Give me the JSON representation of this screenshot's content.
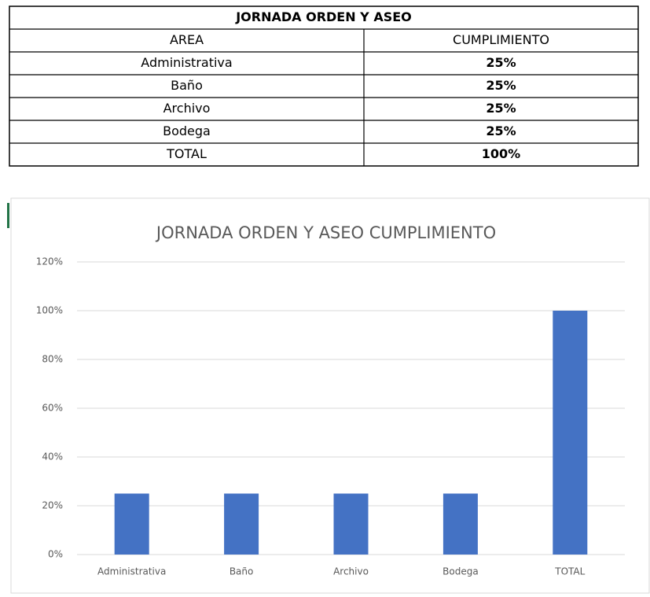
{
  "table": {
    "title": "JORNADA ORDEN Y ASEO",
    "headers": [
      "AREA",
      "CUMPLIMIENTO"
    ],
    "rows": [
      [
        "Administrativa",
        "25%"
      ],
      [
        "Baño",
        "25%"
      ],
      [
        "Archivo",
        "25%"
      ],
      [
        "Bodega",
        "25%"
      ],
      [
        "TOTAL",
        "100%"
      ]
    ]
  },
  "chart_data": {
    "type": "bar",
    "title": "JORNADA ORDEN Y ASEO CUMPLIMIENTO",
    "categories": [
      "Administrativa",
      "Baño",
      "Archivo",
      "Bodega",
      "TOTAL"
    ],
    "values": [
      25,
      25,
      25,
      25,
      100
    ],
    "color": "#4472c4",
    "ylim": [
      0,
      120
    ],
    "yticks": [
      {
        "value": 0,
        "label": "0%"
      },
      {
        "value": 20,
        "label": "20%"
      },
      {
        "value": 40,
        "label": "40%"
      },
      {
        "value": 60,
        "label": "60%"
      },
      {
        "value": 80,
        "label": "80%"
      },
      {
        "value": 100,
        "label": "100%"
      },
      {
        "value": 120,
        "label": "120%"
      }
    ],
    "grid": true
  }
}
